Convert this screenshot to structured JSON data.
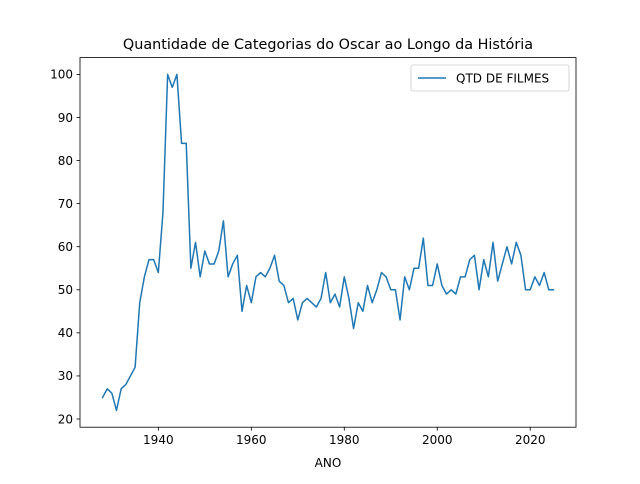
{
  "chart_data": {
    "type": "line",
    "title": "Quantidade de Categorias do Oscar ao Longo da História",
    "xlabel": "ANO",
    "ylabel": "",
    "xlim": [
      1923.15,
      2029.85
    ],
    "ylim": [
      18.1,
      103.9
    ],
    "xticks": [
      1940,
      1960,
      1980,
      2000,
      2020
    ],
    "yticks": [
      20,
      30,
      40,
      50,
      60,
      70,
      80,
      90,
      100
    ],
    "grid": false,
    "legend_position": "top-right",
    "series": [
      {
        "name": "QTD DE FILMES",
        "color": "#1f77b4",
        "x": [
          1928,
          1929,
          1930,
          1931,
          1932,
          1933,
          1934,
          1935,
          1936,
          1937,
          1938,
          1939,
          1940,
          1941,
          1942,
          1943,
          1944,
          1945,
          1946,
          1947,
          1948,
          1949,
          1950,
          1951,
          1952,
          1953,
          1954,
          1955,
          1956,
          1957,
          1958,
          1959,
          1960,
          1961,
          1962,
          1963,
          1964,
          1965,
          1966,
          1967,
          1968,
          1969,
          1970,
          1971,
          1972,
          1973,
          1974,
          1975,
          1976,
          1977,
          1978,
          1979,
          1980,
          1981,
          1982,
          1983,
          1984,
          1985,
          1986,
          1987,
          1988,
          1989,
          1990,
          1991,
          1992,
          1993,
          1994,
          1995,
          1996,
          1997,
          1998,
          1999,
          2000,
          2001,
          2002,
          2003,
          2004,
          2005,
          2006,
          2007,
          2008,
          2009,
          2010,
          2011,
          2012,
          2013,
          2014,
          2015,
          2016,
          2017,
          2018,
          2019,
          2020,
          2021,
          2022,
          2023,
          2024,
          2025
        ],
        "values": [
          25,
          27,
          26,
          22,
          27,
          28,
          30,
          32,
          47,
          53,
          57,
          57,
          54,
          68,
          100,
          97,
          100,
          84,
          84,
          55,
          61,
          53,
          59,
          56,
          56,
          59,
          66,
          53,
          56,
          58,
          45,
          51,
          47,
          53,
          54,
          53,
          55,
          58,
          52,
          51,
          47,
          48,
          43,
          47,
          48,
          47,
          46,
          48,
          54,
          47,
          49,
          46,
          53,
          48,
          41,
          47,
          45,
          51,
          47,
          50,
          54,
          53,
          50,
          50,
          43,
          53,
          50,
          55,
          55,
          62,
          51,
          51,
          56,
          51,
          49,
          50,
          49,
          53,
          53,
          57,
          58,
          50,
          57,
          53,
          61,
          52,
          56,
          60,
          56,
          61,
          58,
          50,
          50,
          53,
          51,
          54,
          50,
          50
        ]
      }
    ]
  }
}
